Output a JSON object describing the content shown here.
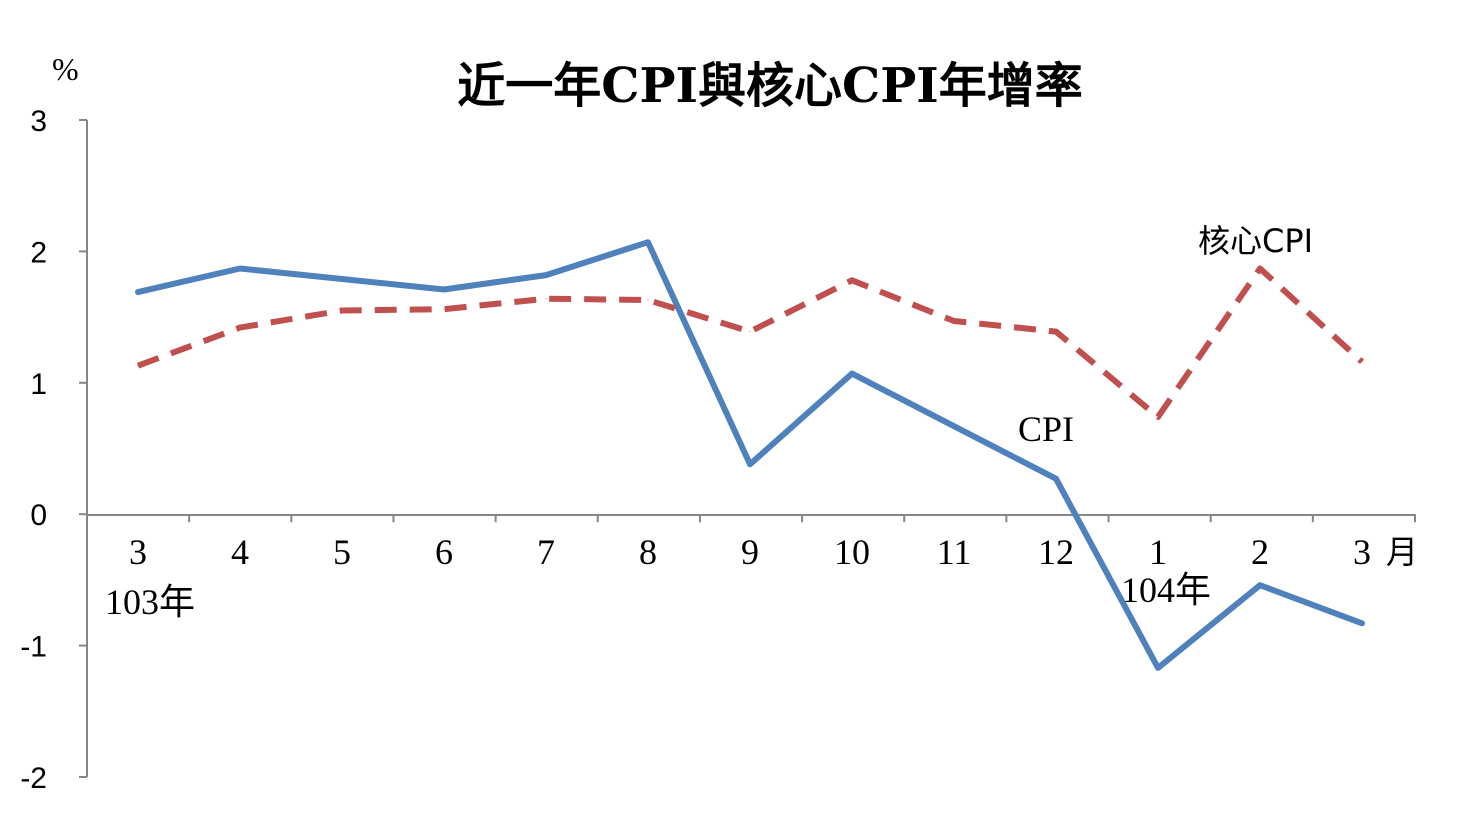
{
  "chart_data": {
    "type": "line",
    "title": "近一年CPI與核心CPI年增率",
    "y_unit": "%",
    "x_unit": "月",
    "categories": [
      "3",
      "4",
      "5",
      "6",
      "7",
      "8",
      "9",
      "10",
      "11",
      "12",
      "1",
      "2",
      "3"
    ],
    "year_labels": [
      {
        "text": "103年",
        "category_index": 0
      },
      {
        "text": "104年",
        "category_index": 10
      }
    ],
    "ylim": [
      -2,
      3
    ],
    "yticks": [
      "3",
      "2",
      "1",
      "0",
      "-1",
      "-2"
    ],
    "grid": false,
    "legend": "inline labels",
    "series": [
      {
        "name": "CPI",
        "color": "#4F81BD",
        "style": "solid",
        "values": [
          1.69,
          1.87,
          1.79,
          1.71,
          1.82,
          2.07,
          0.38,
          1.07,
          0.67,
          0.27,
          -1.17,
          -0.54,
          -0.83
        ]
      },
      {
        "name": "核心CPI",
        "color": "#C0504D",
        "style": "dashed",
        "values": [
          1.13,
          1.42,
          1.55,
          1.56,
          1.64,
          1.63,
          1.39,
          1.78,
          1.47,
          1.39,
          0.74,
          1.87,
          1.16
        ]
      }
    ]
  }
}
